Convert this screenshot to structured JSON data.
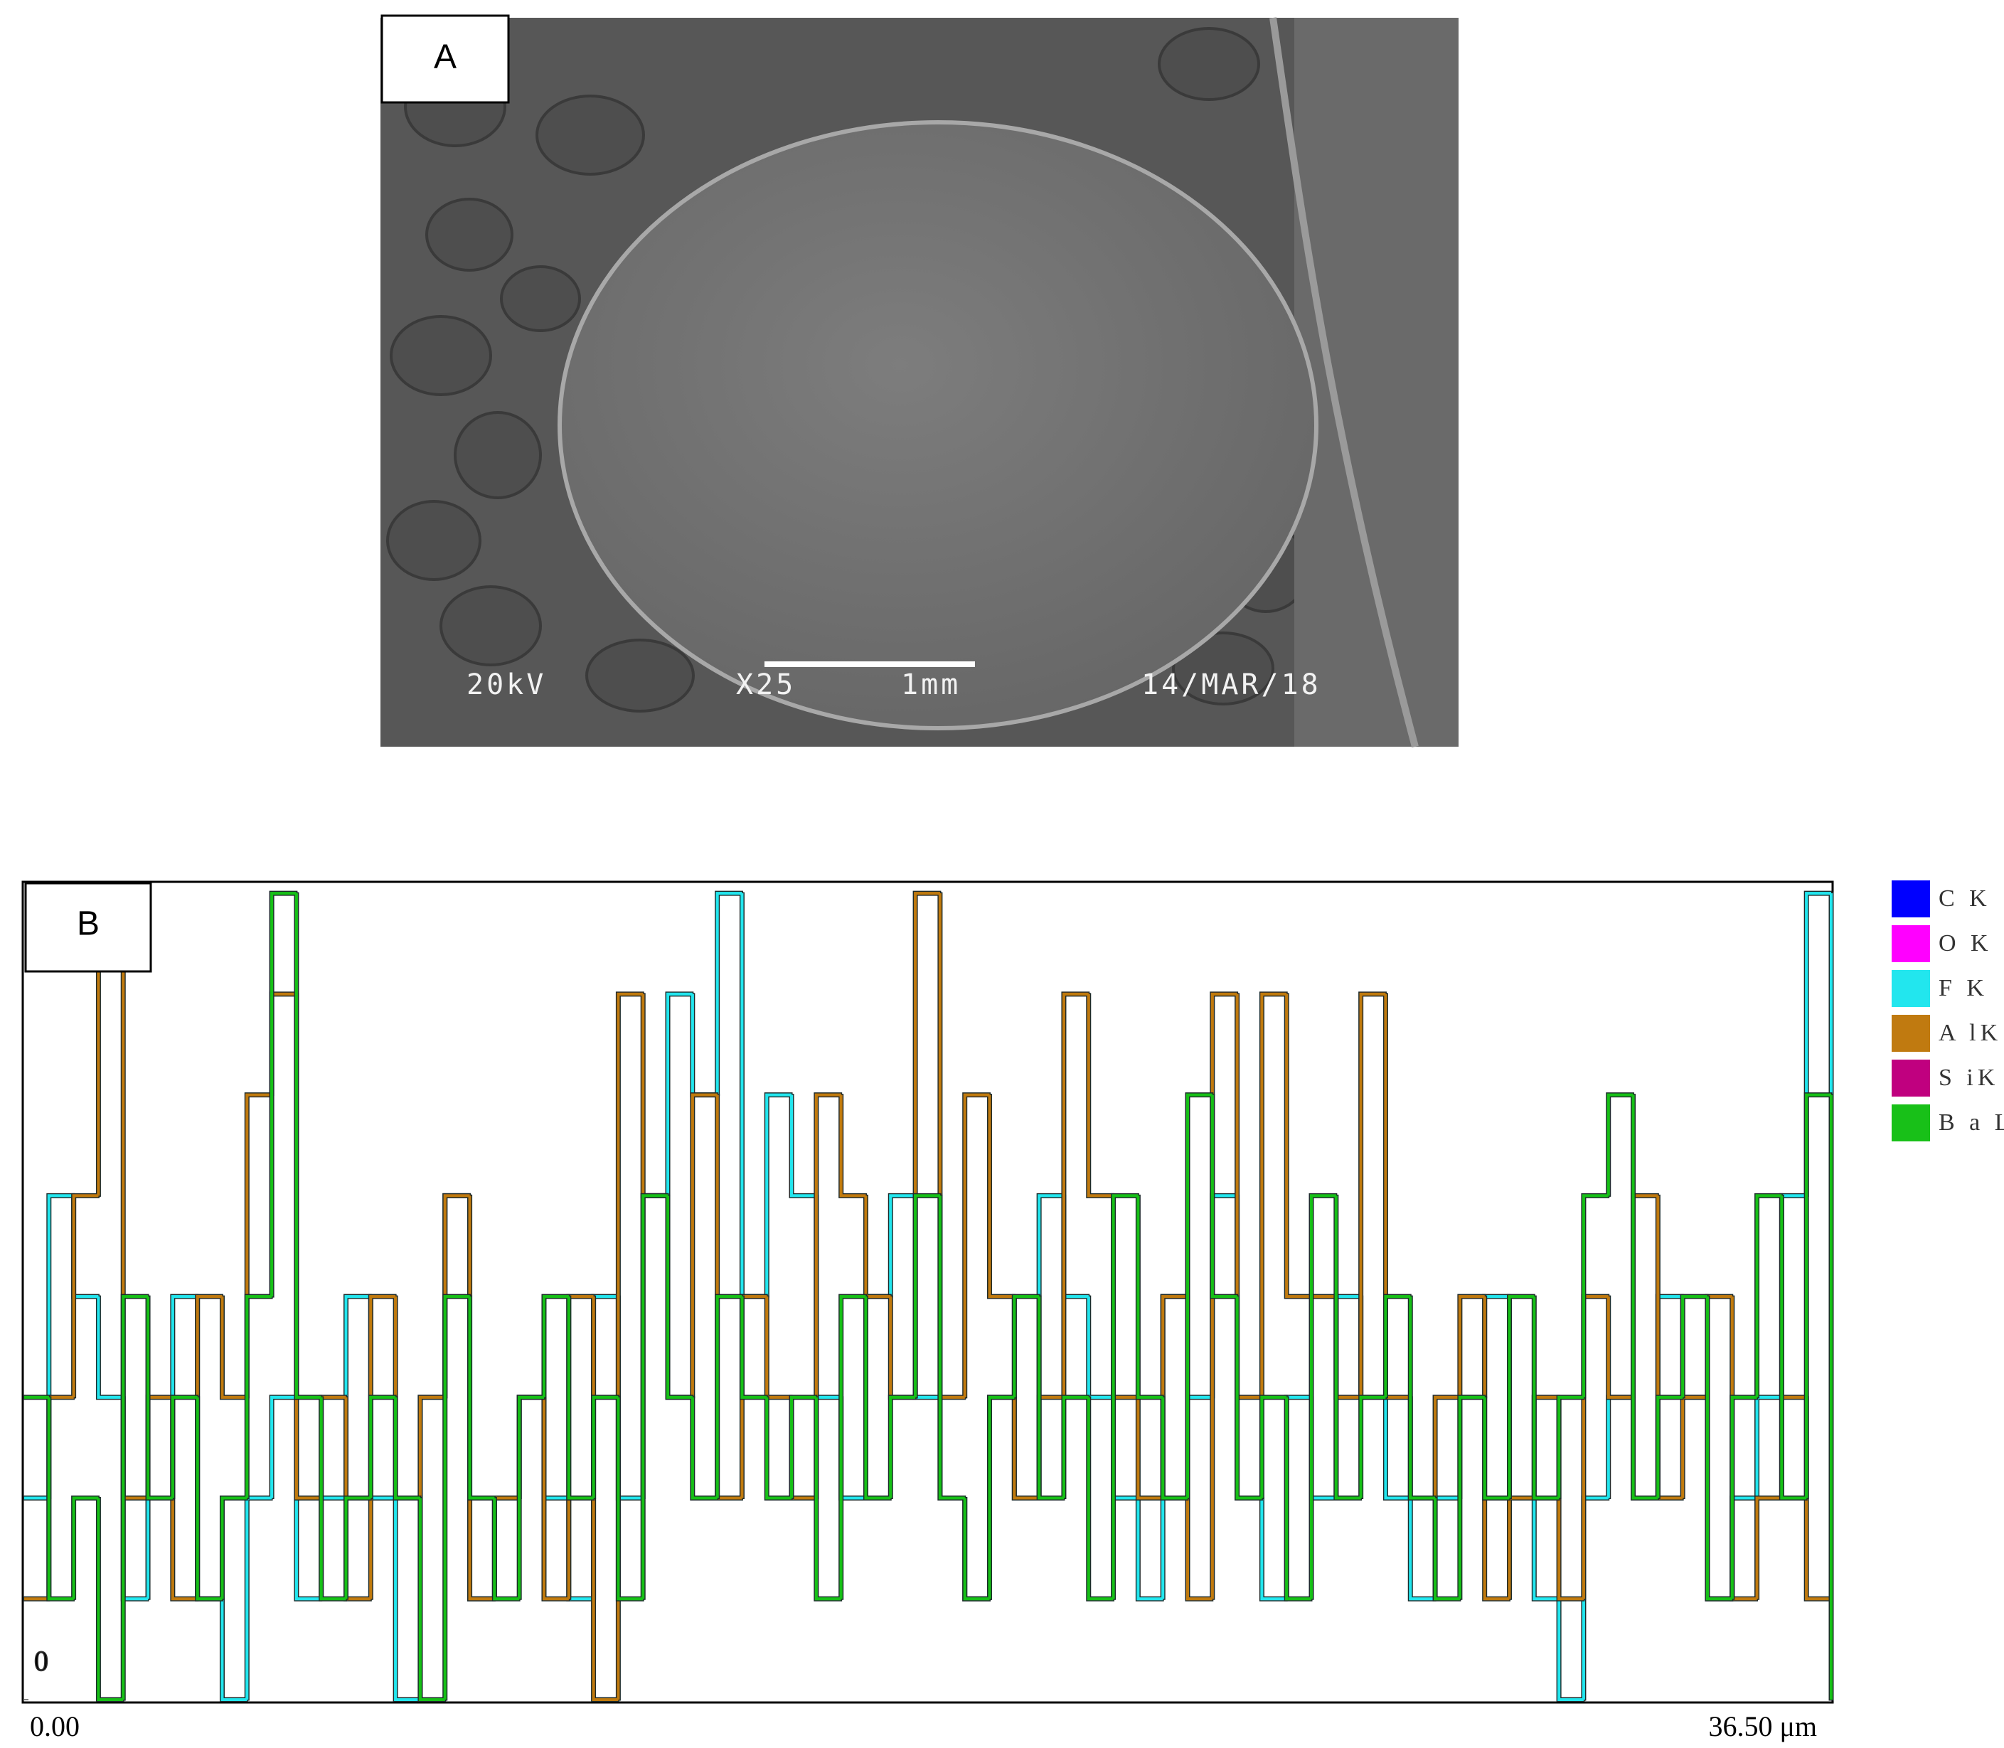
{
  "panel_a": {
    "label": "A",
    "voltage": "20kV",
    "magnification": "X25",
    "scale_bar": "1mm",
    "date": "14/MAR/18"
  },
  "chart_data": {
    "type": "line",
    "panel_label": "B",
    "step": true,
    "legend": "right",
    "x": [
      0,
      0.5,
      1,
      1.5,
      2,
      2.5,
      3,
      3.5,
      4,
      4.5,
      5,
      5.5,
      6,
      6.5,
      7,
      7.5,
      8,
      8.5,
      9,
      9.5,
      10,
      10.5,
      11,
      11.5,
      12,
      12.5,
      13,
      13.5,
      14,
      14.5,
      15,
      15.5,
      16,
      16.5,
      17,
      17.5,
      18,
      18.5,
      19,
      19.5,
      20,
      20.5,
      21,
      21.5,
      22,
      22.5,
      23,
      23.5,
      24,
      24.5,
      25,
      25.5,
      26,
      26.5,
      27,
      27.5,
      28,
      28.5,
      29,
      29.5,
      30,
      30.5,
      31,
      31.5,
      32,
      32.5,
      33,
      33.5,
      34,
      34.5,
      35,
      35.5,
      36,
      36.5
    ],
    "xlim": [
      0,
      36.5
    ],
    "xticks": [
      {
        "value": 0,
        "label": "0.00"
      },
      {
        "value": 36.5,
        "label": "36.50 μm"
      }
    ],
    "ylim": [
      0,
      8.1
    ],
    "yticks": [
      0
    ],
    "series": [
      {
        "name": "C K",
        "color": "#0000ff",
        "values": [
          0,
          0,
          0,
          0,
          0,
          0,
          0,
          0,
          0,
          0,
          0,
          0,
          0,
          0,
          0,
          0,
          0,
          0,
          0,
          0,
          0,
          0,
          0,
          0,
          0,
          0,
          0,
          0,
          0,
          0,
          0,
          0,
          0,
          0,
          0,
          0,
          0,
          0,
          0,
          0,
          0,
          0,
          0,
          0,
          0,
          0,
          0,
          0,
          0,
          0,
          0,
          0,
          0,
          0,
          0,
          0,
          0,
          0,
          0,
          0,
          0,
          0,
          0,
          0,
          0,
          0,
          0,
          0,
          0,
          0,
          0,
          0,
          0,
          0
        ]
      },
      {
        "name": "O K",
        "color": "#ff00ff",
        "values": [
          0,
          0,
          0,
          0,
          0,
          0,
          0,
          0,
          0,
          0,
          0,
          0,
          0,
          0,
          0,
          0,
          0,
          0,
          0,
          0,
          0,
          0,
          0,
          0,
          0,
          0,
          0,
          0,
          0,
          0,
          0,
          0,
          0,
          0,
          0,
          0,
          0,
          0,
          0,
          0,
          0,
          0,
          0,
          0,
          0,
          0,
          0,
          0,
          0,
          0,
          0,
          0,
          0,
          0,
          0,
          0,
          0,
          0,
          0,
          0,
          0,
          0,
          0,
          0,
          0,
          0,
          0,
          0,
          0,
          0,
          0,
          0,
          0,
          0
        ]
      },
      {
        "name": "F K",
        "color": "#22e6ee",
        "values": [
          2,
          5,
          4,
          3,
          1,
          2,
          4,
          1,
          0,
          2,
          3,
          1,
          2,
          4,
          2,
          0,
          3,
          5,
          1,
          2,
          3,
          2,
          1,
          4,
          2,
          5,
          7,
          6,
          8,
          4,
          6,
          5,
          3,
          2,
          4,
          5,
          3,
          2,
          1,
          3,
          2,
          5,
          4,
          3,
          2,
          1,
          4,
          3,
          5,
          2,
          1,
          3,
          2,
          4,
          3,
          2,
          1,
          2,
          3,
          4,
          2,
          1,
          0,
          2,
          3,
          2,
          4,
          3,
          1,
          2,
          3,
          5,
          8,
          2
        ]
      },
      {
        "name": "A lK",
        "color": "#c07a10",
        "values": [
          1,
          3,
          5,
          8,
          2,
          3,
          1,
          4,
          3,
          6,
          7,
          2,
          3,
          1,
          4,
          2,
          3,
          5,
          1,
          2,
          3,
          1,
          4,
          0,
          7,
          5,
          3,
          6,
          2,
          4,
          3,
          2,
          6,
          5,
          4,
          3,
          8,
          3,
          6,
          4,
          2,
          3,
          7,
          5,
          3,
          2,
          4,
          1,
          7,
          3,
          7,
          4,
          4,
          3,
          7,
          3,
          2,
          3,
          4,
          1,
          2,
          3,
          1,
          4,
          3,
          5,
          2,
          3,
          4,
          1,
          2,
          3,
          1,
          0
        ]
      },
      {
        "name": "S iK",
        "color": "#c0007f",
        "values": [
          0,
          0,
          0,
          0,
          0,
          0,
          0,
          0,
          0,
          0,
          0,
          0,
          0,
          0,
          0,
          0,
          0,
          0,
          0,
          0,
          0,
          0,
          0,
          0,
          0,
          0,
          0,
          0,
          0,
          0,
          0,
          0,
          0,
          0,
          0,
          0,
          0,
          0,
          0,
          0,
          0,
          0,
          0,
          0,
          0,
          0,
          0,
          0,
          0,
          0,
          0,
          0,
          0,
          0,
          0,
          0,
          0,
          0,
          0,
          0,
          0,
          0,
          0,
          0,
          0,
          0,
          0,
          0,
          0,
          0,
          0,
          0,
          0,
          0
        ]
      },
      {
        "name": "B a L",
        "color": "#18c018",
        "values": [
          3,
          1,
          2,
          0,
          4,
          2,
          3,
          1,
          2,
          4,
          8,
          3,
          1,
          2,
          3,
          2,
          0,
          4,
          2,
          1,
          3,
          4,
          2,
          3,
          1,
          5,
          3,
          2,
          4,
          3,
          2,
          3,
          1,
          4,
          2,
          3,
          5,
          2,
          1,
          3,
          4,
          2,
          3,
          1,
          5,
          3,
          2,
          6,
          4,
          2,
          3,
          1,
          5,
          2,
          3,
          4,
          2,
          1,
          3,
          2,
          4,
          2,
          3,
          5,
          6,
          2,
          3,
          4,
          1,
          3,
          5,
          2,
          6,
          0
        ]
      }
    ]
  }
}
